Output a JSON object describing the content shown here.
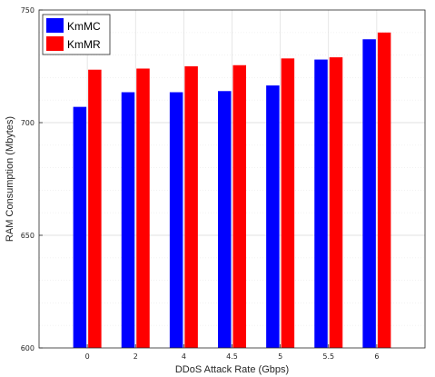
{
  "chart_data": {
    "type": "bar",
    "title": "",
    "xlabel": "DDoS Attack Rate (Gbps)",
    "ylabel": "RAM Consumption (Mbytes)",
    "categories": [
      "0",
      "2",
      "4",
      "4.5",
      "5",
      "5.5",
      "6"
    ],
    "series": [
      {
        "name": "KmMC",
        "color": "#0000ff",
        "values": [
          707,
          713.5,
          713.5,
          714,
          716.5,
          728,
          737
        ]
      },
      {
        "name": "KmMR",
        "color": "#ff0000",
        "values": [
          723.5,
          724,
          725,
          725.5,
          728.5,
          729,
          740
        ]
      }
    ],
    "ylim": [
      600,
      750
    ],
    "yticks": [
      "600",
      "650",
      "700",
      "750"
    ],
    "grid": true,
    "legend_position": "top-left"
  }
}
